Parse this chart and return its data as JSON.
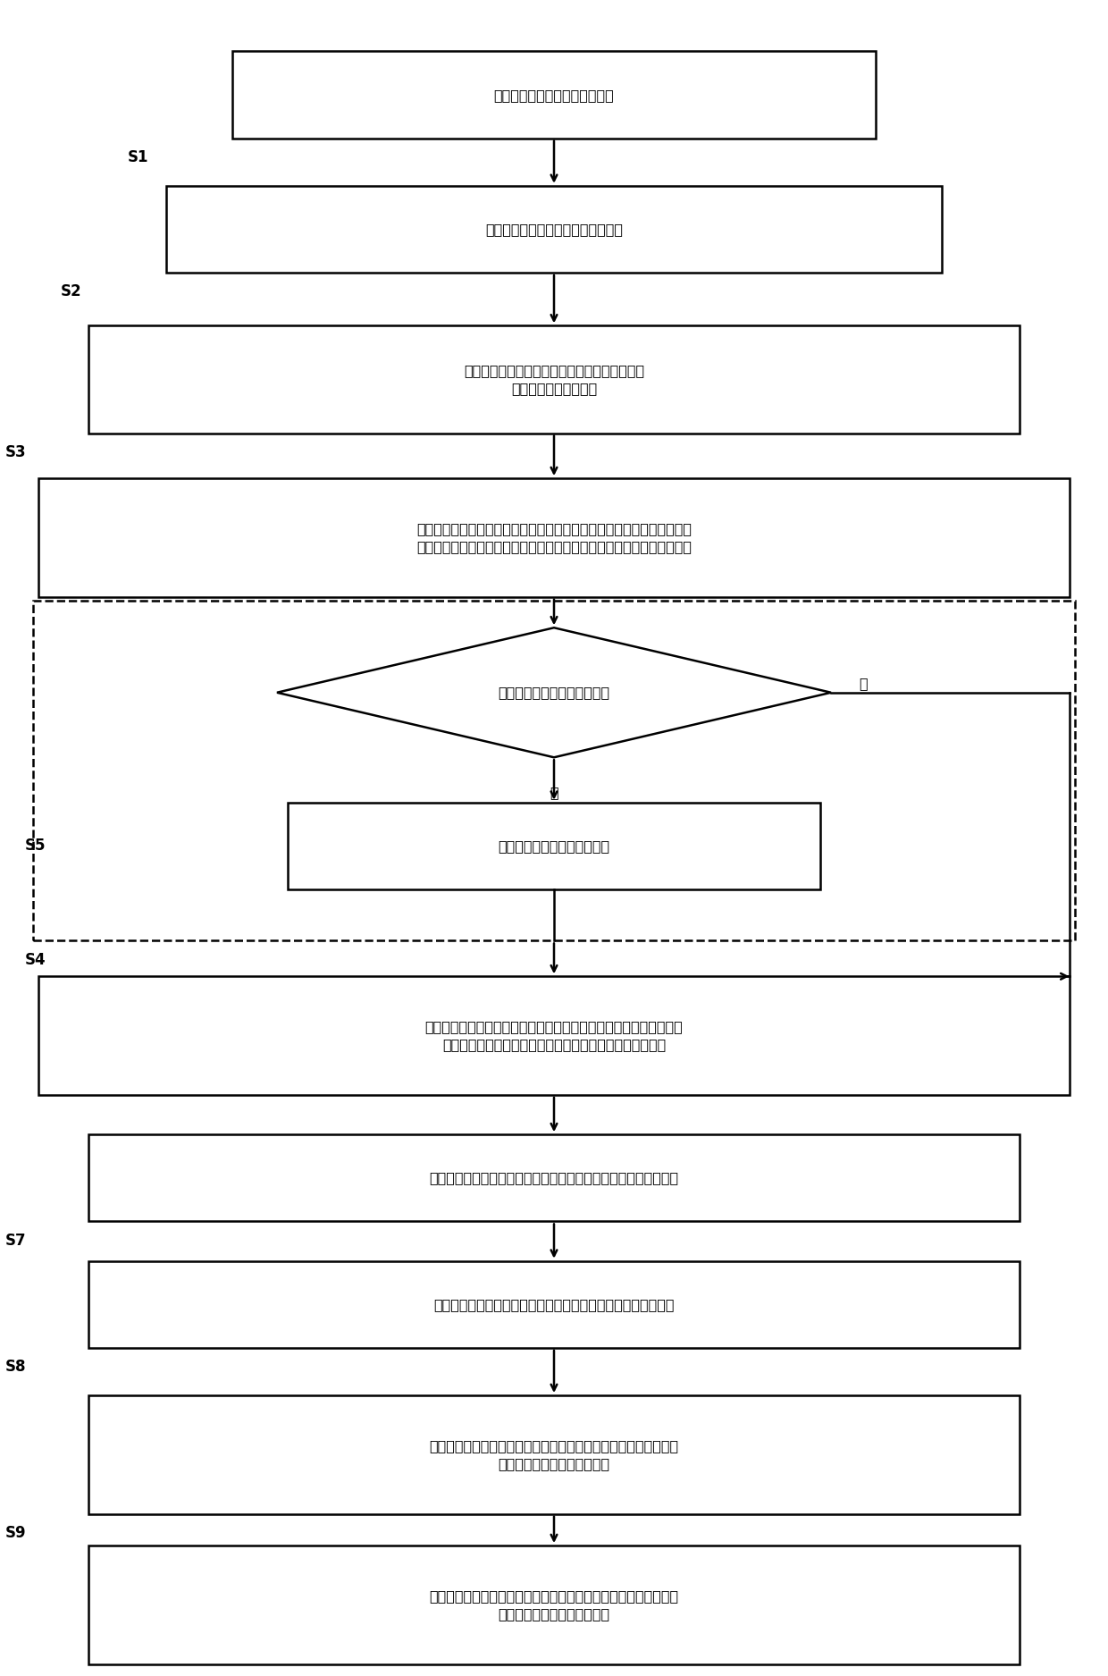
{
  "bg_color": "#ffffff",
  "lw": 1.8,
  "fs": 11.5,
  "label_fs": 12,
  "s1_text": "获取空心粘连验证码的原始图像",
  "s2_text": "将所述原始图像转换为第一灰度图像",
  "s3_text": "去除第一灰度图像中除空心粘连验证码外的干扰\n线，得到第二灰度图像",
  "s4big_text": "根据第二灰度图像获取空心粘连验证码外的空白区域，并根据空白区域对\n第二灰度图像切割，形成由第二灰度图像切割空白区域后的第三灰度图像",
  "diamond_text": "第三灰度图像需要位置纠正？",
  "yes_text": "是",
  "no_text": "否",
  "s5_text": "对第三灰度图像进行位置纠正",
  "s6_text": "对第三灰度图像进行字符切割处理，分别得到组成空心粘连验证码的\n各个字符的单字符图像，并记录所有单字符图像的排列顺序",
  "s7_text": "将各个单字符图像中的字符居中，得到各个字符的单字符居中图像",
  "s8_text": "对各个单字符居中图像进行降维处理，得到各个字符的字符标签",
  "s9_text": "调用预存的数据模型，分别将各个字符标签输入到数据模型中，得\n到各个字符标签所对应的字符",
  "s10_text": "调用预存的数据模型，分别将各个字符标签输入到数据模型中，得\n到各个字符标签所对应的字符"
}
